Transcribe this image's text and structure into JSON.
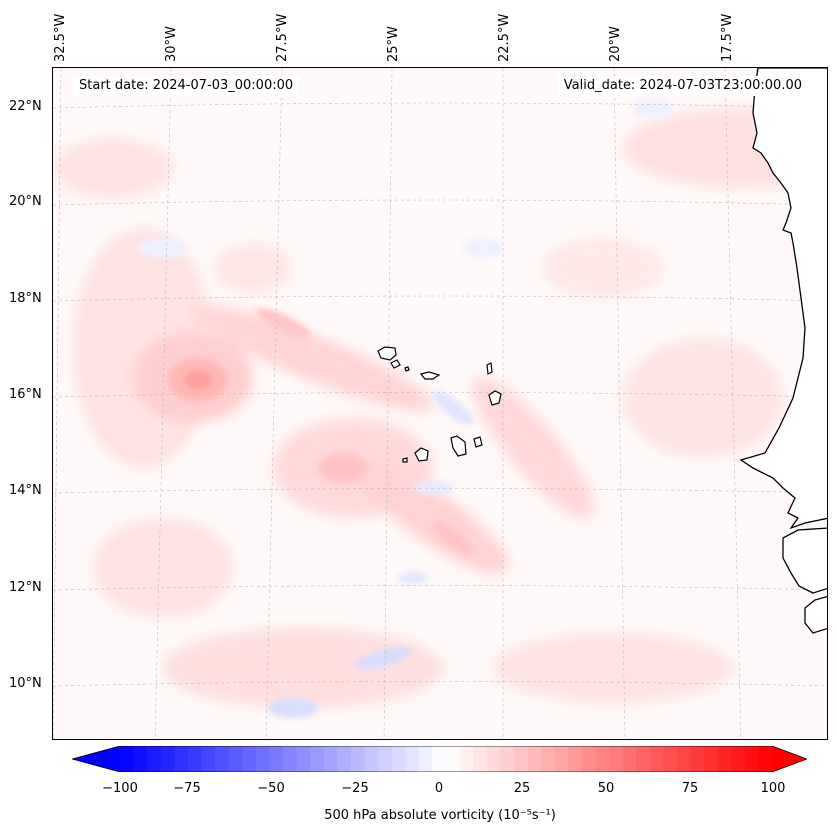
{
  "longitude_labels": [
    "32.5°W",
    "30°W",
    "27.5°W",
    "25°W",
    "22.5°W",
    "20°W",
    "17.5°W"
  ],
  "latitude_labels": [
    "22°N",
    "20°N",
    "18°N",
    "16°N",
    "14°N",
    "12°N",
    "10°N"
  ],
  "start_date": "Start date: 2024-07-03_00:00:00",
  "valid_date": "Valid_date: 2024-07-03T23:00:00.00",
  "colorbar": {
    "ticks": [
      "−100",
      "−75",
      "−50",
      "−25",
      "0",
      "25",
      "50",
      "75",
      "100"
    ],
    "label": "500 hPa absolute vorticity (10⁻⁵s⁻¹)",
    "min": -100,
    "max": 100,
    "levels": 48,
    "neg_color": "#0000ff",
    "pos_color": "#ff0000"
  }
}
